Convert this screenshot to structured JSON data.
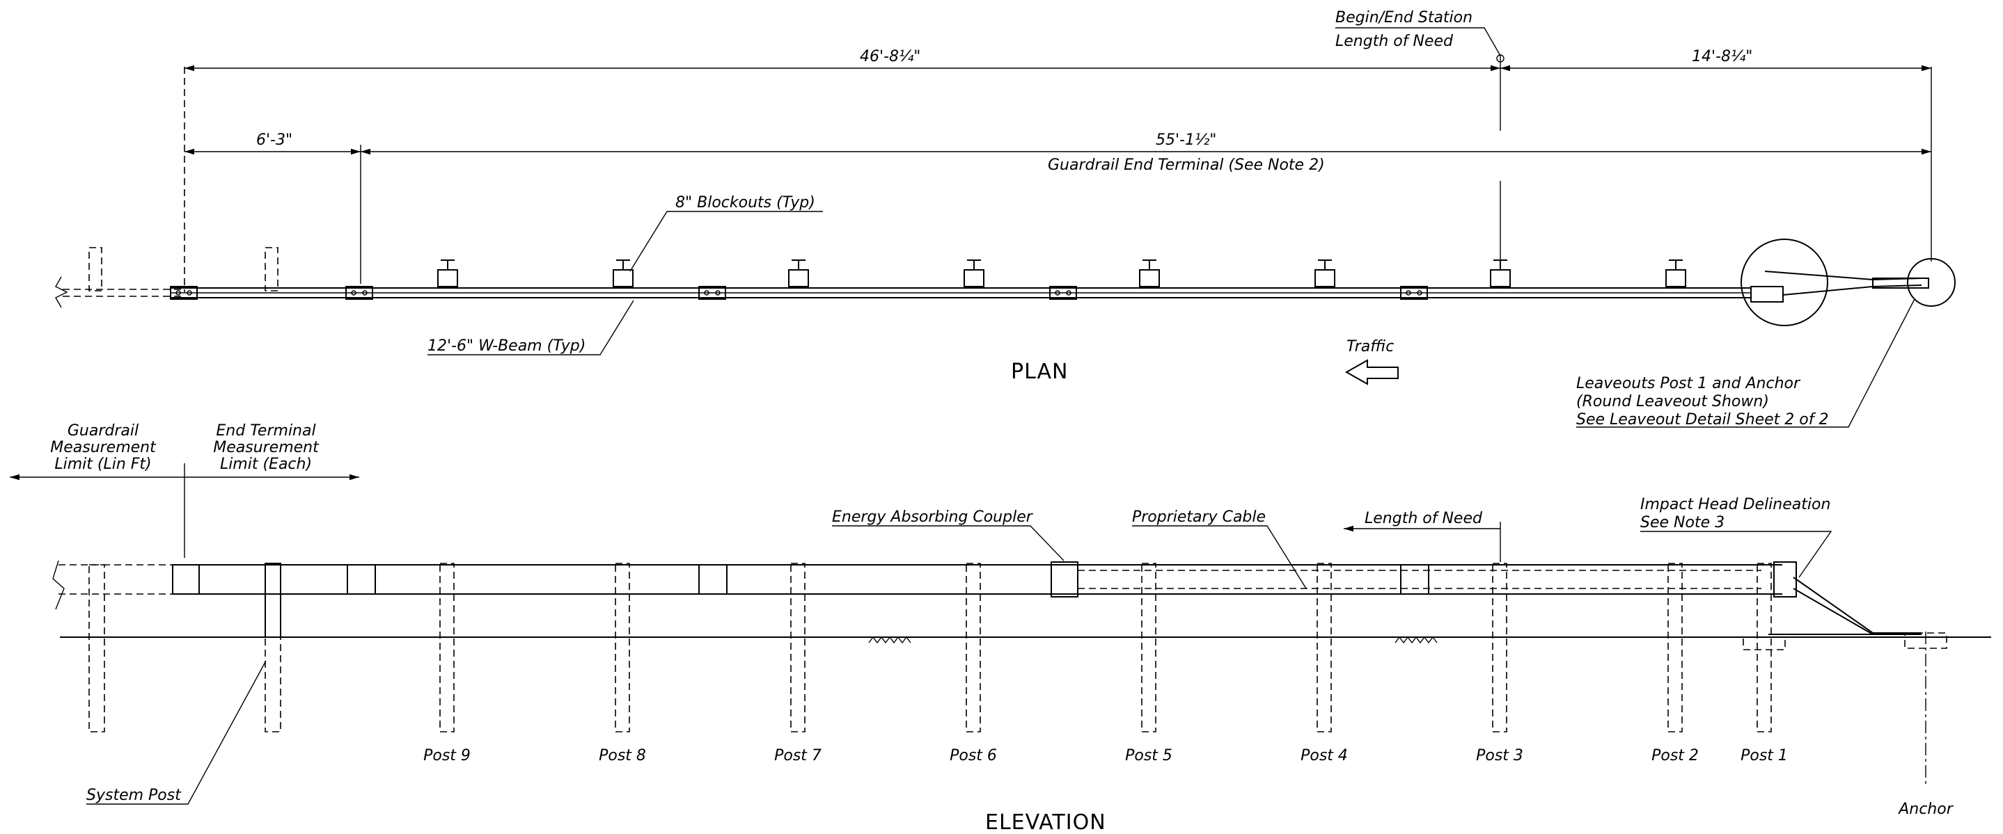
{
  "plan": {
    "title": "PLAN",
    "dim_top_left": "46'-8¼\"",
    "dim_top_right": "14'-8¼\"",
    "dim_mid_left": "6'-3\"",
    "dim_mid_right": "55'-1½\"",
    "end_terminal_note": "Guardrail End Terminal (See Note 2)",
    "begin_end_station": "Begin/End Station",
    "length_of_need": "Length of Need",
    "blockouts": "8\" Blockouts (Typ)",
    "w_beam": "12'-6\" W-Beam (Typ)",
    "traffic": "Traffic",
    "leaveouts_1": "Leaveouts Post 1 and Anchor",
    "leaveouts_2": "(Round Leaveout Shown)",
    "leaveouts_3": "See Leaveout Detail Sheet 2 of 2"
  },
  "elevation": {
    "title": "ELEVATION",
    "guardrail_limit_1": "Guardrail",
    "guardrail_limit_2": "Measurement",
    "guardrail_limit_3": "Limit (Lin Ft)",
    "terminal_limit_1": "End Terminal",
    "terminal_limit_2": "Measurement",
    "terminal_limit_3": "Limit (Each)",
    "energy_coupler": "Energy Absorbing Coupler",
    "proprietary_cable": "Proprietary Cable",
    "length_of_need": "Length of Need",
    "impact_head_1": "Impact Head Delineation",
    "impact_head_2": "See Note 3",
    "system_post": "System Post",
    "anchor": "Anchor",
    "posts": [
      "Post 9",
      "Post 8",
      "Post 7",
      "Post 6",
      "Post 5",
      "Post 4",
      "Post 3",
      "Post 2",
      "Post 1"
    ]
  }
}
